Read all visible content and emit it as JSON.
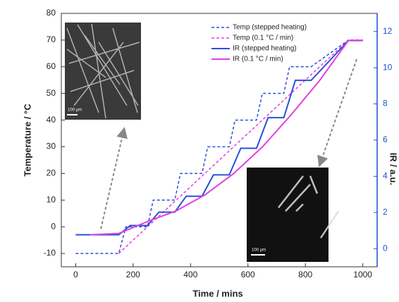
{
  "chart_data": {
    "type": "line",
    "xlabel": "Time / mins",
    "ylabel": "Temperature / °C",
    "y2label": "IR / a.u.",
    "xlim": [
      -50,
      1050
    ],
    "xticks": [
      0,
      200,
      400,
      600,
      800,
      1000
    ],
    "ylim": [
      -15,
      80
    ],
    "yticks": [
      -10,
      0,
      10,
      20,
      30,
      40,
      50,
      60,
      70,
      80
    ],
    "y2lim": [
      -1,
      13
    ],
    "y2ticks": [
      0,
      2,
      4,
      6,
      8,
      10,
      12
    ],
    "legend": "upper center",
    "axis_color": "#1f4fd6",
    "series": [
      {
        "name": "Temp (stepped heating)",
        "color": "#2a4fd8",
        "linestyle": "dashed",
        "axis": "y",
        "x": [
          0,
          150,
          175,
          250,
          270,
          345,
          365,
          440,
          460,
          535,
          555,
          630,
          650,
          725,
          745,
          820,
          950,
          1000
        ],
        "values": [
          -10,
          -10,
          0,
          0,
          10,
          10,
          20,
          20,
          30,
          30,
          40,
          40,
          50,
          50,
          60,
          60,
          70,
          70
        ]
      },
      {
        "name": "Temp (0.1 °C / min)",
        "color": "#e040e0",
        "linestyle": "dashed",
        "axis": "y",
        "x": [
          150,
          950,
          1000
        ],
        "values": [
          -10,
          70,
          70
        ]
      },
      {
        "name": "IR (stepped heating)",
        "color": "#2a4fd8",
        "linestyle": "solid",
        "axis": "y2",
        "x": [
          0,
          150,
          190,
          250,
          290,
          345,
          385,
          440,
          480,
          535,
          575,
          630,
          670,
          725,
          765,
          820,
          950,
          1000
        ],
        "values": [
          0.77,
          0.77,
          1.28,
          1.28,
          2.02,
          2.02,
          2.9,
          2.9,
          4.08,
          4.08,
          5.55,
          5.55,
          7.24,
          7.24,
          9.3,
          9.3,
          11.5,
          11.5
        ]
      },
      {
        "name": "IR (0.1 °C / min)",
        "color": "#e040e0",
        "linestyle": "solid",
        "axis": "y2",
        "x": [
          50,
          150,
          250,
          350,
          450,
          550,
          650,
          750,
          850,
          950,
          1000
        ],
        "values": [
          0.77,
          0.84,
          1.5,
          2.09,
          2.97,
          4.15,
          5.62,
          7.39,
          9.3,
          11.5,
          11.5
        ]
      }
    ],
    "insets": [
      {
        "scale_label": "100 µm"
      },
      {
        "scale_label": "100 µm"
      }
    ]
  }
}
